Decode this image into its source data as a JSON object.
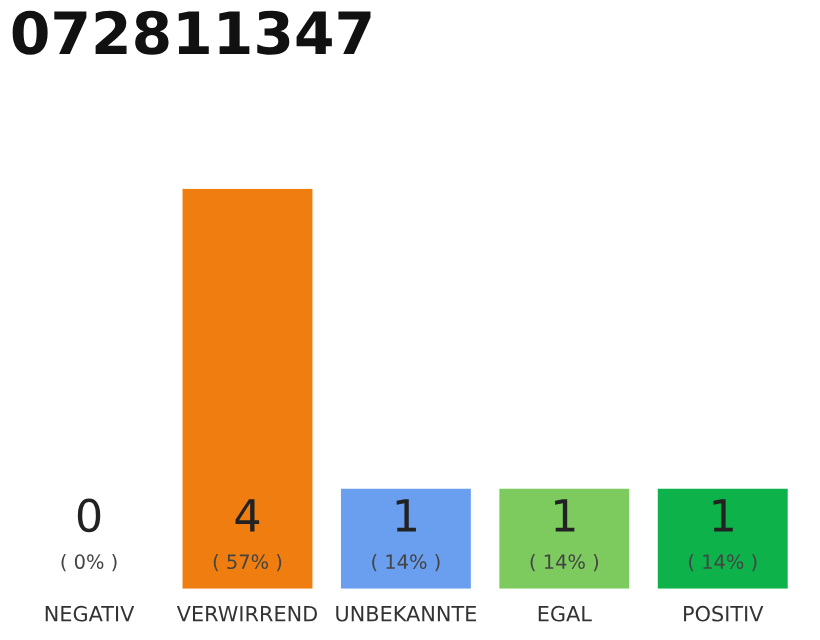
{
  "chart_data": {
    "type": "bar",
    "title": "072811347",
    "categories": [
      "NEGATIV",
      "VERWIRREND",
      "UNBEKANNTE",
      "EGAL",
      "POSITIV"
    ],
    "values": [
      0,
      4,
      1,
      1,
      1
    ],
    "colors": [
      "#e0e0e0",
      "#f07d0f",
      "#6a9ff0",
      "#7dcb5e",
      "#0db24b"
    ],
    "value_labels": [
      "0\n( 0% )",
      "4\n( 57% )",
      "1\n( 14% )",
      "1\n( 14% )",
      "1\n( 14% )"
    ],
    "grid": false,
    "legend": false
  }
}
